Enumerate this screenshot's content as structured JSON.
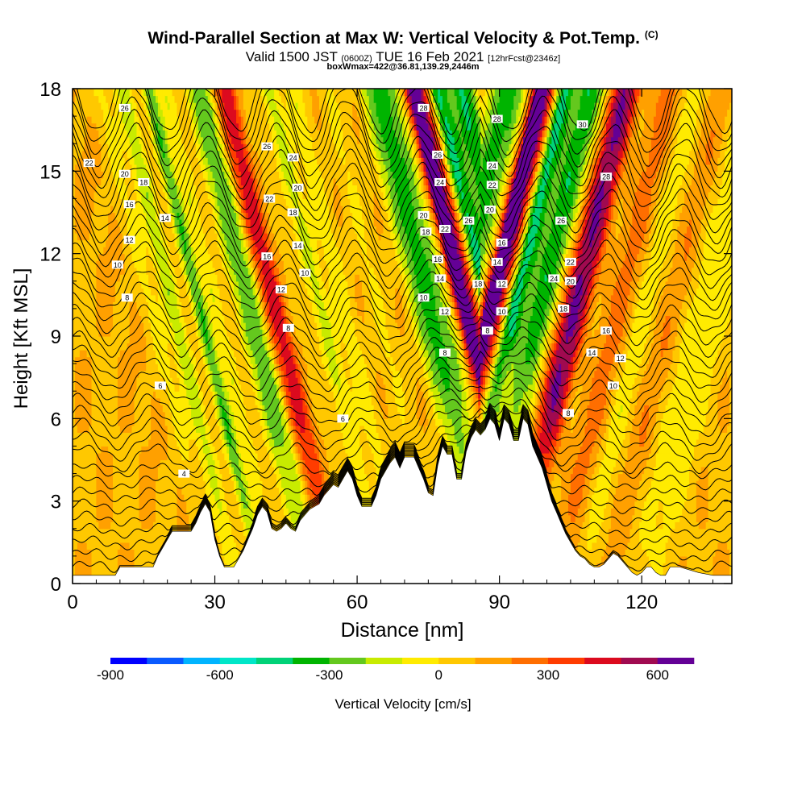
{
  "title": {
    "main": "Wind-Parallel Section at Max W: Vertical Velocity & Pot.Temp.",
    "main_unit": "(C)",
    "valid_prefix": "Valid 1500 JST",
    "valid_utc": "(0600Z)",
    "valid_date": "TUE 16 Feb 2021",
    "forecast": "[12hrFcst@2346z]",
    "box_info": "boxWmax=422@36.81,139.29,2446m"
  },
  "colorbar": {
    "label": "Vertical Velocity [cm/s]",
    "colors": [
      "#0000ff",
      "#0a5aff",
      "#00b4ff",
      "#00e6c8",
      "#00d278",
      "#00b400",
      "#64c81e",
      "#c8eb00",
      "#ffeb00",
      "#ffc800",
      "#ffa000",
      "#ff6e00",
      "#ff3c00",
      "#dc0a1e",
      "#a00a50",
      "#640096"
    ],
    "tick_values": [
      -900,
      -600,
      -300,
      0,
      300,
      600
    ],
    "tick_labels": [
      "-900",
      "-600",
      "-300",
      "0",
      "300",
      "600"
    ],
    "range": [
      -900,
      700
    ]
  },
  "chart_data": {
    "type": "heatmap",
    "title": "Wind-Parallel Section at Max W: Vertical Velocity & Pot.Temp.",
    "xlabel": "Distance [nm]",
    "ylabel": "Height [Kft MSL]",
    "xlim": [
      0,
      139
    ],
    "ylim": [
      0,
      18
    ],
    "xticks": [
      0,
      30,
      60,
      90,
      120
    ],
    "xtick_labels": [
      "0",
      "30",
      "60",
      "90",
      "120"
    ],
    "yticks": [
      0,
      3,
      6,
      9,
      12,
      15,
      18
    ],
    "ytick_labels": [
      "0",
      "3",
      "6",
      "9",
      "12",
      "15",
      "18"
    ],
    "terrain": [
      [
        0,
        0.3
      ],
      [
        9,
        0.3
      ],
      [
        10,
        0.6
      ],
      [
        17,
        0.6
      ],
      [
        18,
        1
      ],
      [
        19,
        1.3
      ],
      [
        20,
        1.6
      ],
      [
        21,
        1.9
      ],
      [
        25,
        1.9
      ],
      [
        26,
        2.2
      ],
      [
        27,
        2.6
      ],
      [
        28,
        2.9
      ],
      [
        29,
        2.6
      ],
      [
        30,
        1.6
      ],
      [
        31,
        1.0
      ],
      [
        32,
        0.6
      ],
      [
        34,
        0.6
      ],
      [
        35,
        0.9
      ],
      [
        36,
        1.2
      ],
      [
        37,
        1.6
      ],
      [
        38,
        2.0
      ],
      [
        39,
        2.5
      ],
      [
        40,
        2.8
      ],
      [
        41,
        2.6
      ],
      [
        42,
        2.0
      ],
      [
        43,
        1.9
      ],
      [
        44,
        2.0
      ],
      [
        45,
        2.2
      ],
      [
        46,
        2.0
      ],
      [
        47,
        1.9
      ],
      [
        48,
        2.3
      ],
      [
        49,
        2.5
      ],
      [
        50,
        2.7
      ],
      [
        52,
        2.9
      ],
      [
        53,
        3.2
      ],
      [
        54,
        3.4
      ],
      [
        55,
        3.6
      ],
      [
        56,
        3.5
      ],
      [
        57,
        3.8
      ],
      [
        58,
        4.1
      ],
      [
        59,
        3.8
      ],
      [
        60,
        3.2
      ],
      [
        61,
        2.8
      ],
      [
        63,
        2.8
      ],
      [
        64,
        3.2
      ],
      [
        65,
        3.8
      ],
      [
        66,
        4.1
      ],
      [
        67,
        4.4
      ],
      [
        68,
        4.6
      ],
      [
        69,
        4.2
      ],
      [
        70,
        4.6
      ],
      [
        72,
        4.6
      ],
      [
        73,
        4.2
      ],
      [
        74,
        3.8
      ],
      [
        75,
        3.3
      ],
      [
        76,
        3.2
      ],
      [
        77,
        4.3
      ],
      [
        78,
        5.0
      ],
      [
        79,
        4.7
      ],
      [
        80,
        4.7
      ],
      [
        81,
        3.8
      ],
      [
        82,
        3.8
      ],
      [
        83,
        4.8
      ],
      [
        84,
        5.3
      ],
      [
        85,
        5.6
      ],
      [
        86,
        5.4
      ],
      [
        87,
        5.6
      ],
      [
        88,
        6.0
      ],
      [
        89,
        5.8
      ],
      [
        90,
        5.2
      ],
      [
        91,
        6.0
      ],
      [
        92,
        5.8
      ],
      [
        93,
        5.2
      ],
      [
        94,
        5.2
      ],
      [
        95,
        6.0
      ],
      [
        96,
        5.8
      ],
      [
        97,
        5.0
      ],
      [
        98,
        4.6
      ],
      [
        99,
        4.2
      ],
      [
        100,
        3.6
      ],
      [
        101,
        3.0
      ],
      [
        102,
        2.6
      ],
      [
        103,
        2.2
      ],
      [
        104,
        1.8
      ],
      [
        105,
        1.5
      ],
      [
        106,
        1.2
      ],
      [
        107,
        1.0
      ],
      [
        108,
        0.9
      ],
      [
        109,
        0.7
      ],
      [
        110,
        0.6
      ],
      [
        111,
        0.6
      ],
      [
        112,
        0.7
      ],
      [
        113,
        0.9
      ],
      [
        114,
        1.1
      ],
      [
        115,
        1.0
      ],
      [
        116,
        0.8
      ],
      [
        117,
        0.6
      ],
      [
        118,
        0.4
      ],
      [
        119,
        0.3
      ],
      [
        120,
        0.4
      ],
      [
        121,
        0.6
      ],
      [
        122,
        0.6
      ],
      [
        123,
        0.4
      ],
      [
        124,
        0.3
      ],
      [
        125,
        0.3
      ],
      [
        126,
        0.6
      ],
      [
        128,
        0.6
      ],
      [
        130,
        0.5
      ],
      [
        132,
        0.4
      ],
      [
        135,
        0.3
      ],
      [
        139,
        0.3
      ]
    ],
    "vertical_velocity_bands": [
      {
        "x": 16,
        "w": 2.5,
        "v": 60
      },
      {
        "x": 19,
        "w": 2.5,
        "v": -150
      },
      {
        "x": 24,
        "w": 1.8,
        "v": -250
      },
      {
        "x": 29.5,
        "w": 1.6,
        "v": -400
      },
      {
        "x": 33,
        "w": 1.6,
        "v": -150
      },
      {
        "x": 39,
        "w": 2.2,
        "v": -320
      },
      {
        "x": 41.5,
        "w": 1.5,
        "v": -200
      },
      {
        "x": 44.5,
        "w": 1.8,
        "v": 280
      },
      {
        "x": 46.5,
        "w": 1.4,
        "v": 220
      },
      {
        "x": 55,
        "w": 2.0,
        "v": -250
      },
      {
        "x": 60,
        "w": 2.0,
        "v": -150
      },
      {
        "x": 67,
        "w": 2.0,
        "v": -100
      },
      {
        "x": 75,
        "w": 1.8,
        "v": -200
      },
      {
        "x": 78,
        "w": 2.2,
        "v": -420
      },
      {
        "x": 81,
        "w": 1.8,
        "v": -250
      },
      {
        "x": 85,
        "w": 1.5,
        "v": 600
      },
      {
        "x": 87,
        "w": 1.8,
        "v": 380
      },
      {
        "x": 90,
        "w": 1.6,
        "v": -450
      },
      {
        "x": 92,
        "w": 1.6,
        "v": -300
      },
      {
        "x": 95,
        "w": 2.0,
        "v": -420
      },
      {
        "x": 97.5,
        "w": 1.8,
        "v": -250
      },
      {
        "x": 102.5,
        "w": 2.2,
        "v": 450
      },
      {
        "x": 105,
        "w": 1.8,
        "v": 280
      },
      {
        "x": 113,
        "w": 3.0,
        "v": 150
      },
      {
        "x": 118,
        "w": 2.5,
        "v": -180
      },
      {
        "x": 124,
        "w": 2.5,
        "v": 130
      },
      {
        "x": 129,
        "w": 3.0,
        "v": -150
      },
      {
        "x": 134,
        "w": 3.0,
        "v": -120
      }
    ],
    "contour_labels": [
      {
        "text": "26",
        "x": 11,
        "y": 17.3
      },
      {
        "text": "22",
        "x": 3.5,
        "y": 15.3
      },
      {
        "text": "20",
        "x": 11,
        "y": 14.9
      },
      {
        "text": "18",
        "x": 15,
        "y": 14.6
      },
      {
        "text": "16",
        "x": 12,
        "y": 13.8
      },
      {
        "text": "14",
        "x": 19.5,
        "y": 13.3
      },
      {
        "text": "12",
        "x": 12,
        "y": 12.5
      },
      {
        "text": "10",
        "x": 9.5,
        "y": 11.6
      },
      {
        "text": "8",
        "x": 11.5,
        "y": 10.4
      },
      {
        "text": "6",
        "x": 18.5,
        "y": 7.2
      },
      {
        "text": "4",
        "x": 23.5,
        "y": 4.0
      },
      {
        "text": "26",
        "x": 41,
        "y": 15.9
      },
      {
        "text": "24",
        "x": 46.5,
        "y": 15.5
      },
      {
        "text": "20",
        "x": 47.5,
        "y": 14.4
      },
      {
        "text": "22",
        "x": 41.5,
        "y": 14.0
      },
      {
        "text": "18",
        "x": 46.5,
        "y": 13.5
      },
      {
        "text": "14",
        "x": 47.5,
        "y": 12.3
      },
      {
        "text": "16",
        "x": 41,
        "y": 11.9
      },
      {
        "text": "10",
        "x": 49,
        "y": 11.3
      },
      {
        "text": "12",
        "x": 44,
        "y": 10.7
      },
      {
        "text": "8",
        "x": 45.5,
        "y": 9.3
      },
      {
        "text": "6",
        "x": 57,
        "y": 6.0
      },
      {
        "text": "28",
        "x": 74,
        "y": 17.3
      },
      {
        "text": "26",
        "x": 77,
        "y": 15.6
      },
      {
        "text": "24",
        "x": 77.5,
        "y": 14.6
      },
      {
        "text": "20",
        "x": 74,
        "y": 13.4
      },
      {
        "text": "22",
        "x": 78.5,
        "y": 12.9
      },
      {
        "text": "18",
        "x": 74.5,
        "y": 12.8
      },
      {
        "text": "16",
        "x": 77,
        "y": 11.8
      },
      {
        "text": "14",
        "x": 77.5,
        "y": 11.1
      },
      {
        "text": "10",
        "x": 74,
        "y": 10.4
      },
      {
        "text": "12",
        "x": 78.5,
        "y": 9.9
      },
      {
        "text": "8",
        "x": 78.5,
        "y": 8.4
      },
      {
        "text": "26",
        "x": 83.5,
        "y": 13.2
      },
      {
        "text": "28",
        "x": 89.5,
        "y": 16.9
      },
      {
        "text": "24",
        "x": 88.5,
        "y": 15.2
      },
      {
        "text": "22",
        "x": 88.5,
        "y": 14.5
      },
      {
        "text": "20",
        "x": 88,
        "y": 13.6
      },
      {
        "text": "16",
        "x": 90.5,
        "y": 12.4
      },
      {
        "text": "14",
        "x": 89.5,
        "y": 11.7
      },
      {
        "text": "18",
        "x": 85.5,
        "y": 10.9
      },
      {
        "text": "12",
        "x": 90.5,
        "y": 10.9
      },
      {
        "text": "10",
        "x": 90.5,
        "y": 9.9
      },
      {
        "text": "8",
        "x": 87.5,
        "y": 9.2
      },
      {
        "text": "30",
        "x": 107.5,
        "y": 16.7
      },
      {
        "text": "28",
        "x": 112.5,
        "y": 14.8
      },
      {
        "text": "26",
        "x": 103,
        "y": 13.2
      },
      {
        "text": "22",
        "x": 105,
        "y": 11.7
      },
      {
        "text": "24",
        "x": 101.5,
        "y": 11.1
      },
      {
        "text": "20",
        "x": 105,
        "y": 11.0
      },
      {
        "text": "18",
        "x": 103.5,
        "y": 10.0
      },
      {
        "text": "16",
        "x": 112.5,
        "y": 9.2
      },
      {
        "text": "14",
        "x": 109.5,
        "y": 8.4
      },
      {
        "text": "12",
        "x": 115.5,
        "y": 8.2
      },
      {
        "text": "10",
        "x": 114,
        "y": 7.2
      },
      {
        "text": "8",
        "x": 104.5,
        "y": 6.2
      }
    ],
    "theta_levels": [
      4,
      6,
      8,
      10,
      12,
      14,
      16,
      18,
      20,
      22,
      24,
      26,
      28,
      30
    ]
  }
}
